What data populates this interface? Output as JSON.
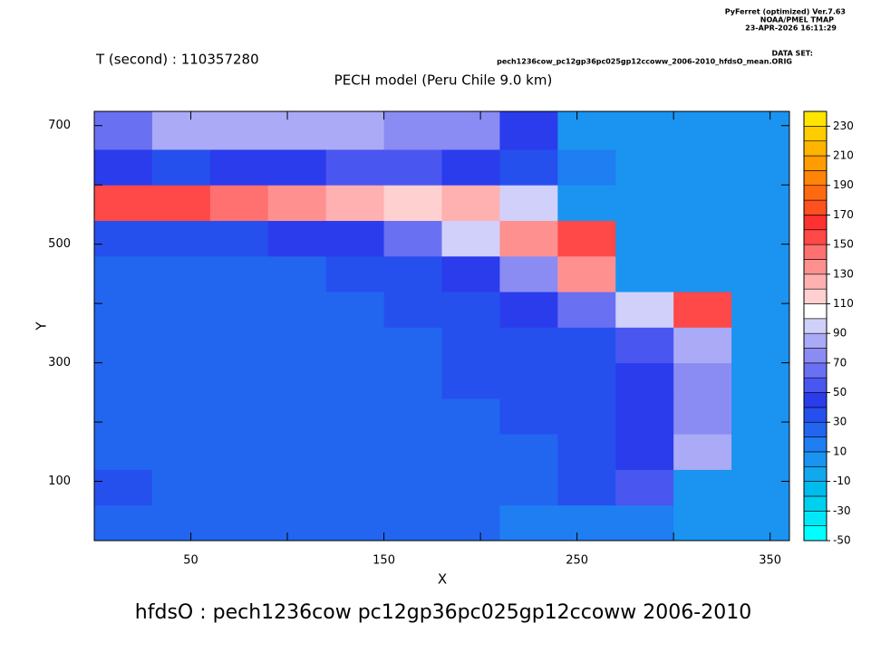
{
  "chart_data": {
    "type": "heatmap",
    "header_lines": [
      "PyFerret (optimized) Ver.7.63",
      "NOAA/PMEL TMAP",
      "23-APR-2026 16:11:29",
      "DATA SET:",
      "pech1236cow_pc12gp36pc025gp12ccoww_2006-2010_hfdsO_mean.ORIG"
    ],
    "subtitle": "T (second) : 110357280",
    "title": "PECH model (Peru Chile 9.0 km)",
    "xlabel": "X",
    "ylabel": "Y",
    "caption": "hfdsO : pech1236cow pc12gp36pc025gp12ccoww 2006-2010",
    "xlim": [
      0,
      360
    ],
    "ylim": [
      0,
      724
    ],
    "xticks": [
      50,
      150,
      250,
      350
    ],
    "x_minor_ticks": [
      100,
      200,
      300
    ],
    "yticks": [
      100,
      300,
      500,
      700
    ],
    "y_minor_ticks": [
      200,
      400,
      600
    ],
    "x_edges": [
      0,
      30,
      60,
      90,
      120,
      150,
      180,
      210,
      240,
      270,
      300,
      330,
      360
    ],
    "y_edges": [
      0,
      60,
      120,
      180,
      240,
      300,
      360,
      420,
      480,
      540,
      600,
      660,
      724
    ],
    "z": [
      [
        20,
        20,
        20,
        20,
        20,
        20,
        20,
        15,
        15,
        10,
        5,
        5
      ],
      [
        30,
        25,
        25,
        25,
        25,
        25,
        25,
        25,
        30,
        50,
        5,
        5
      ],
      [
        25,
        25,
        25,
        25,
        25,
        25,
        25,
        25,
        30,
        45,
        80,
        5
      ],
      [
        25,
        25,
        25,
        25,
        25,
        25,
        25,
        30,
        35,
        40,
        75,
        5
      ],
      [
        25,
        25,
        25,
        25,
        25,
        25,
        30,
        30,
        30,
        40,
        70,
        5
      ],
      [
        25,
        25,
        20,
        25,
        25,
        25,
        30,
        30,
        35,
        50,
        80,
        5
      ],
      [
        25,
        25,
        25,
        25,
        25,
        30,
        30,
        40,
        60,
        90,
        150,
        5
      ],
      [
        25,
        25,
        25,
        25,
        30,
        35,
        45,
        70,
        130,
        5,
        5,
        5
      ],
      [
        30,
        35,
        35,
        40,
        45,
        60,
        90,
        130,
        150,
        5,
        5,
        5
      ],
      [
        150,
        150,
        145,
        130,
        120,
        115,
        120,
        90,
        5,
        5,
        5,
        5
      ],
      [
        40,
        35,
        40,
        40,
        50,
        50,
        45,
        30,
        10,
        5,
        5,
        5
      ],
      [
        60,
        80,
        85,
        85,
        80,
        75,
        70,
        40,
        5,
        5,
        5,
        5
      ]
    ],
    "levels": [
      -50,
      -40,
      -30,
      -20,
      -10,
      0,
      10,
      20,
      30,
      40,
      50,
      60,
      70,
      80,
      90,
      100,
      110,
      120,
      130,
      140,
      150,
      160,
      170,
      180,
      190,
      200,
      210,
      220,
      230,
      240
    ],
    "level_colors": [
      "#00ffff",
      "#00e8f8",
      "#00d0f0",
      "#00bcec",
      "#12a8ee",
      "#1a94f0",
      "#1f7ef2",
      "#2266f0",
      "#2650ee",
      "#2a3cec",
      "#4a56f0",
      "#6a70f2",
      "#8a8cf4",
      "#aaaaf6",
      "#d0d0fa",
      "#ffffff",
      "#ffd0d0",
      "#ffb0b0",
      "#ff9090",
      "#ff7070",
      "#ff4848",
      "#ff3030",
      "#ff5020",
      "#ff6a10",
      "#ff8408",
      "#ff9c00",
      "#ffb400",
      "#ffcc00",
      "#ffe400"
    ],
    "colorbar_ticks": [
      -50,
      -30,
      -10,
      10,
      30,
      50,
      70,
      90,
      110,
      130,
      150,
      170,
      190,
      210,
      230
    ]
  }
}
